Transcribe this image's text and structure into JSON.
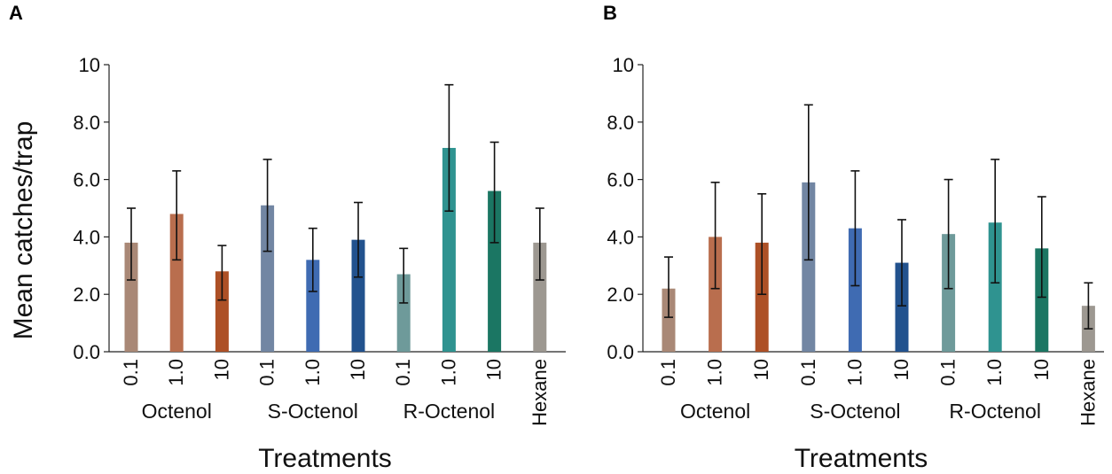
{
  "chart_data": [
    {
      "panel": "A",
      "type": "bar",
      "ylabel": "Mean catches/trap",
      "xlabel": "Treatments",
      "ylim": [
        0,
        10
      ],
      "yticks": [
        "0.0",
        "2.0",
        "4.0",
        "6.0",
        "8.0",
        "10"
      ],
      "ytick_values": [
        0,
        2,
        4,
        6,
        8,
        10
      ],
      "categories": [
        "0.1",
        "1.0",
        "10",
        "0.1",
        "1.0",
        "10",
        "0.1",
        "1.0",
        "10",
        "Hexane"
      ],
      "groups": [
        {
          "label": "Octenol",
          "indices": [
            0,
            1,
            2
          ]
        },
        {
          "label": "S-Octenol",
          "indices": [
            3,
            4,
            5
          ]
        },
        {
          "label": "R-Octenol",
          "indices": [
            6,
            7,
            8
          ]
        },
        {
          "label": "Hexane",
          "indices": [
            9
          ]
        }
      ],
      "values": [
        3.8,
        4.8,
        2.8,
        5.1,
        3.2,
        3.9,
        2.7,
        7.1,
        5.6,
        3.8
      ],
      "err_low": [
        2.5,
        3.2,
        1.8,
        3.5,
        2.1,
        2.6,
        1.7,
        4.9,
        3.8,
        2.5
      ],
      "err_high": [
        5.0,
        6.3,
        3.7,
        6.7,
        4.3,
        5.2,
        3.6,
        9.3,
        7.3,
        5.0
      ],
      "colors": [
        "#a98876",
        "#b96e4e",
        "#ad5026",
        "#7286a3",
        "#3f6bb2",
        "#22528e",
        "#6e9a9a",
        "#2f9390",
        "#1b7663",
        "#9d9891"
      ]
    },
    {
      "panel": "B",
      "type": "bar",
      "ylabel": "",
      "xlabel": "Treatments",
      "ylim": [
        0,
        10
      ],
      "yticks": [
        "0.0",
        "2.0",
        "4.0",
        "6.0",
        "8.0",
        "10"
      ],
      "ytick_values": [
        0,
        2,
        4,
        6,
        8,
        10
      ],
      "categories": [
        "0.1",
        "1.0",
        "10",
        "0.1",
        "1.0",
        "10",
        "0.1",
        "1.0",
        "10",
        "Hexane"
      ],
      "groups": [
        {
          "label": "Octenol",
          "indices": [
            0,
            1,
            2
          ]
        },
        {
          "label": "S-Octenol",
          "indices": [
            3,
            4,
            5
          ]
        },
        {
          "label": "R-Octenol",
          "indices": [
            6,
            7,
            8
          ]
        },
        {
          "label": "Hexane",
          "indices": [
            9
          ]
        }
      ],
      "values": [
        2.2,
        4.0,
        3.8,
        5.9,
        4.3,
        3.1,
        4.1,
        4.5,
        3.6,
        1.6
      ],
      "err_low": [
        1.2,
        2.2,
        2.0,
        3.2,
        2.3,
        1.6,
        2.2,
        2.4,
        1.9,
        0.8
      ],
      "err_high": [
        3.3,
        5.9,
        5.5,
        8.6,
        6.3,
        4.6,
        6.0,
        6.7,
        5.4,
        2.4
      ],
      "colors": [
        "#a98876",
        "#b96e4e",
        "#ad5026",
        "#7286a3",
        "#3f6bb2",
        "#22528e",
        "#6e9a9a",
        "#2f9390",
        "#1b7663",
        "#9d9891"
      ]
    }
  ]
}
